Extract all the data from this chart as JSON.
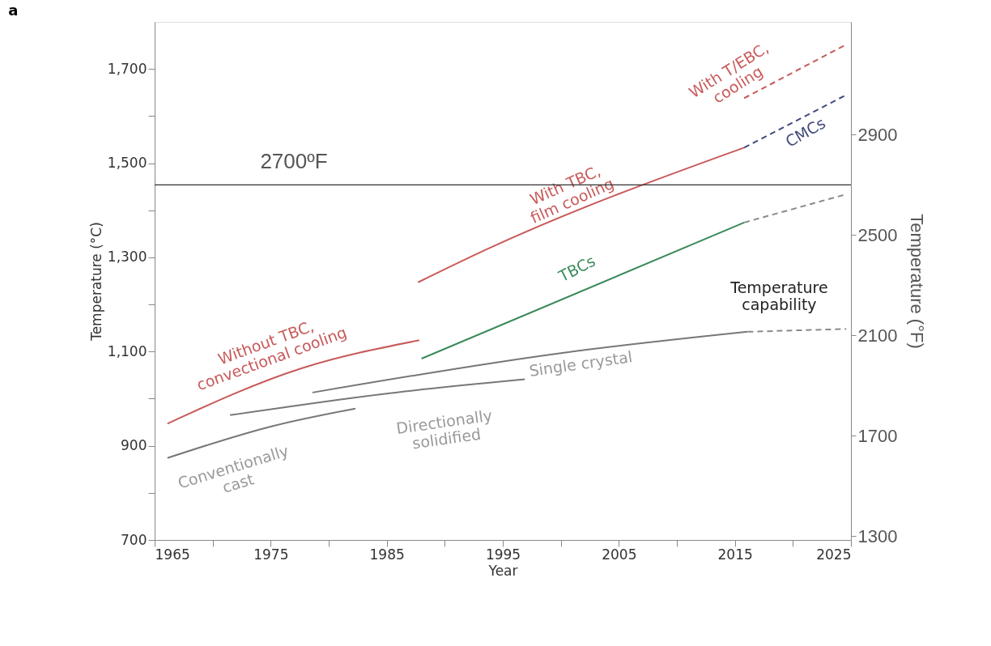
{
  "chart_data": {
    "type": "line",
    "title": "a",
    "xlabel": "Year",
    "ylabel": "Temperature (°C)",
    "y2label": "Temperature (°F)",
    "xlim": [
      1965,
      2025
    ],
    "xticks": [
      1965,
      {
        "value": 1970,
        "label": null
      },
      1975,
      {
        "value": 1980,
        "label": null
      },
      1985,
      {
        "value": 1990,
        "label": null
      },
      1995,
      {
        "value": 2000,
        "label": null
      },
      2005,
      {
        "value": 2010,
        "label": null
      },
      2015,
      {
        "value": 2020,
        "label": null
      },
      2025
    ],
    "ylim": [
      700,
      1800
    ],
    "yticks": [
      700,
      {
        "value": 800,
        "label": null
      },
      900,
      {
        "value": 1000,
        "label": null
      },
      {
        "value": 1100,
        "label": "1,100"
      },
      {
        "value": 1200,
        "label": null
      },
      {
        "value": 1300,
        "label": "1,300"
      },
      {
        "value": 1400,
        "label": null
      },
      {
        "value": 1500,
        "label": "1,500"
      },
      {
        "value": 1600,
        "label": null
      },
      {
        "value": 1700,
        "label": "1,700"
      }
    ],
    "y2lim": [
      1285,
      3350
    ],
    "y2ticks": [
      1300,
      1700,
      2100,
      2500,
      2900
    ],
    "grid": false,
    "series": [
      {
        "color": "#c85a5a",
        "x": [
          1966.1,
          1977.6,
          1987.8
        ],
        "values": [
          947,
          1064,
          1124
        ],
        "line_style": "solid"
      },
      {
        "color": "#c85a5a",
        "x": [
          1987.7,
          1993.7,
          2015.8
        ],
        "values": [
          1247,
          1318,
          1533
        ],
        "line_style": "solid"
      },
      {
        "color": "#c85a5a",
        "x": [
          2015.8,
          2024.6
        ],
        "values": [
          1638,
          1752
        ],
        "line_style": "dashed"
      },
      {
        "color": "#3f4a7a",
        "x": [
          2015.8,
          2024.6
        ],
        "values": [
          1533,
          1645
        ],
        "line_style": "dashed"
      },
      {
        "color": "#3a8a5a",
        "x": [
          1988,
          2015.8
        ],
        "values": [
          1085,
          1374
        ],
        "line_style": "solid"
      },
      {
        "color": "#8a8a8a",
        "x": [
          2015.8,
          2024.6
        ],
        "values": [
          1374,
          1434
        ],
        "line_style": "dashed"
      },
      {
        "color": "#777777",
        "x": [
          1966.1,
          1975.2,
          1982.3
        ],
        "values": [
          874,
          942,
          979
        ],
        "line_style": "solid"
      },
      {
        "color": "#777777",
        "x": [
          1971.5,
          1984.7,
          1996.9
        ],
        "values": [
          965,
          1010,
          1041
        ],
        "line_style": "solid"
      },
      {
        "color": "#777777",
        "x": [
          1978.6,
          2000.4,
          2016.1
        ],
        "values": [
          1013,
          1098,
          1142
        ],
        "line_style": "solid"
      },
      {
        "color": "#8a8a8a",
        "x": [
          2016.1,
          2024.6
        ],
        "values": [
          1142,
          1148
        ],
        "line_style": "dashed"
      }
    ],
    "ref_lines": [
      {
        "axis": "y2",
        "value": 2700,
        "label": "2700ºF",
        "color": "#333333"
      }
    ],
    "annotations": [
      "Without TBC,\nconvectional cooling",
      "Conventionally\ncast",
      "Directionally\nsolidified",
      "Single crystal",
      "TBCs",
      "With TBC,\nfilm cooling",
      "With T/EBC,\ncooling",
      "CMCs",
      "Temperature\ncapability"
    ]
  }
}
